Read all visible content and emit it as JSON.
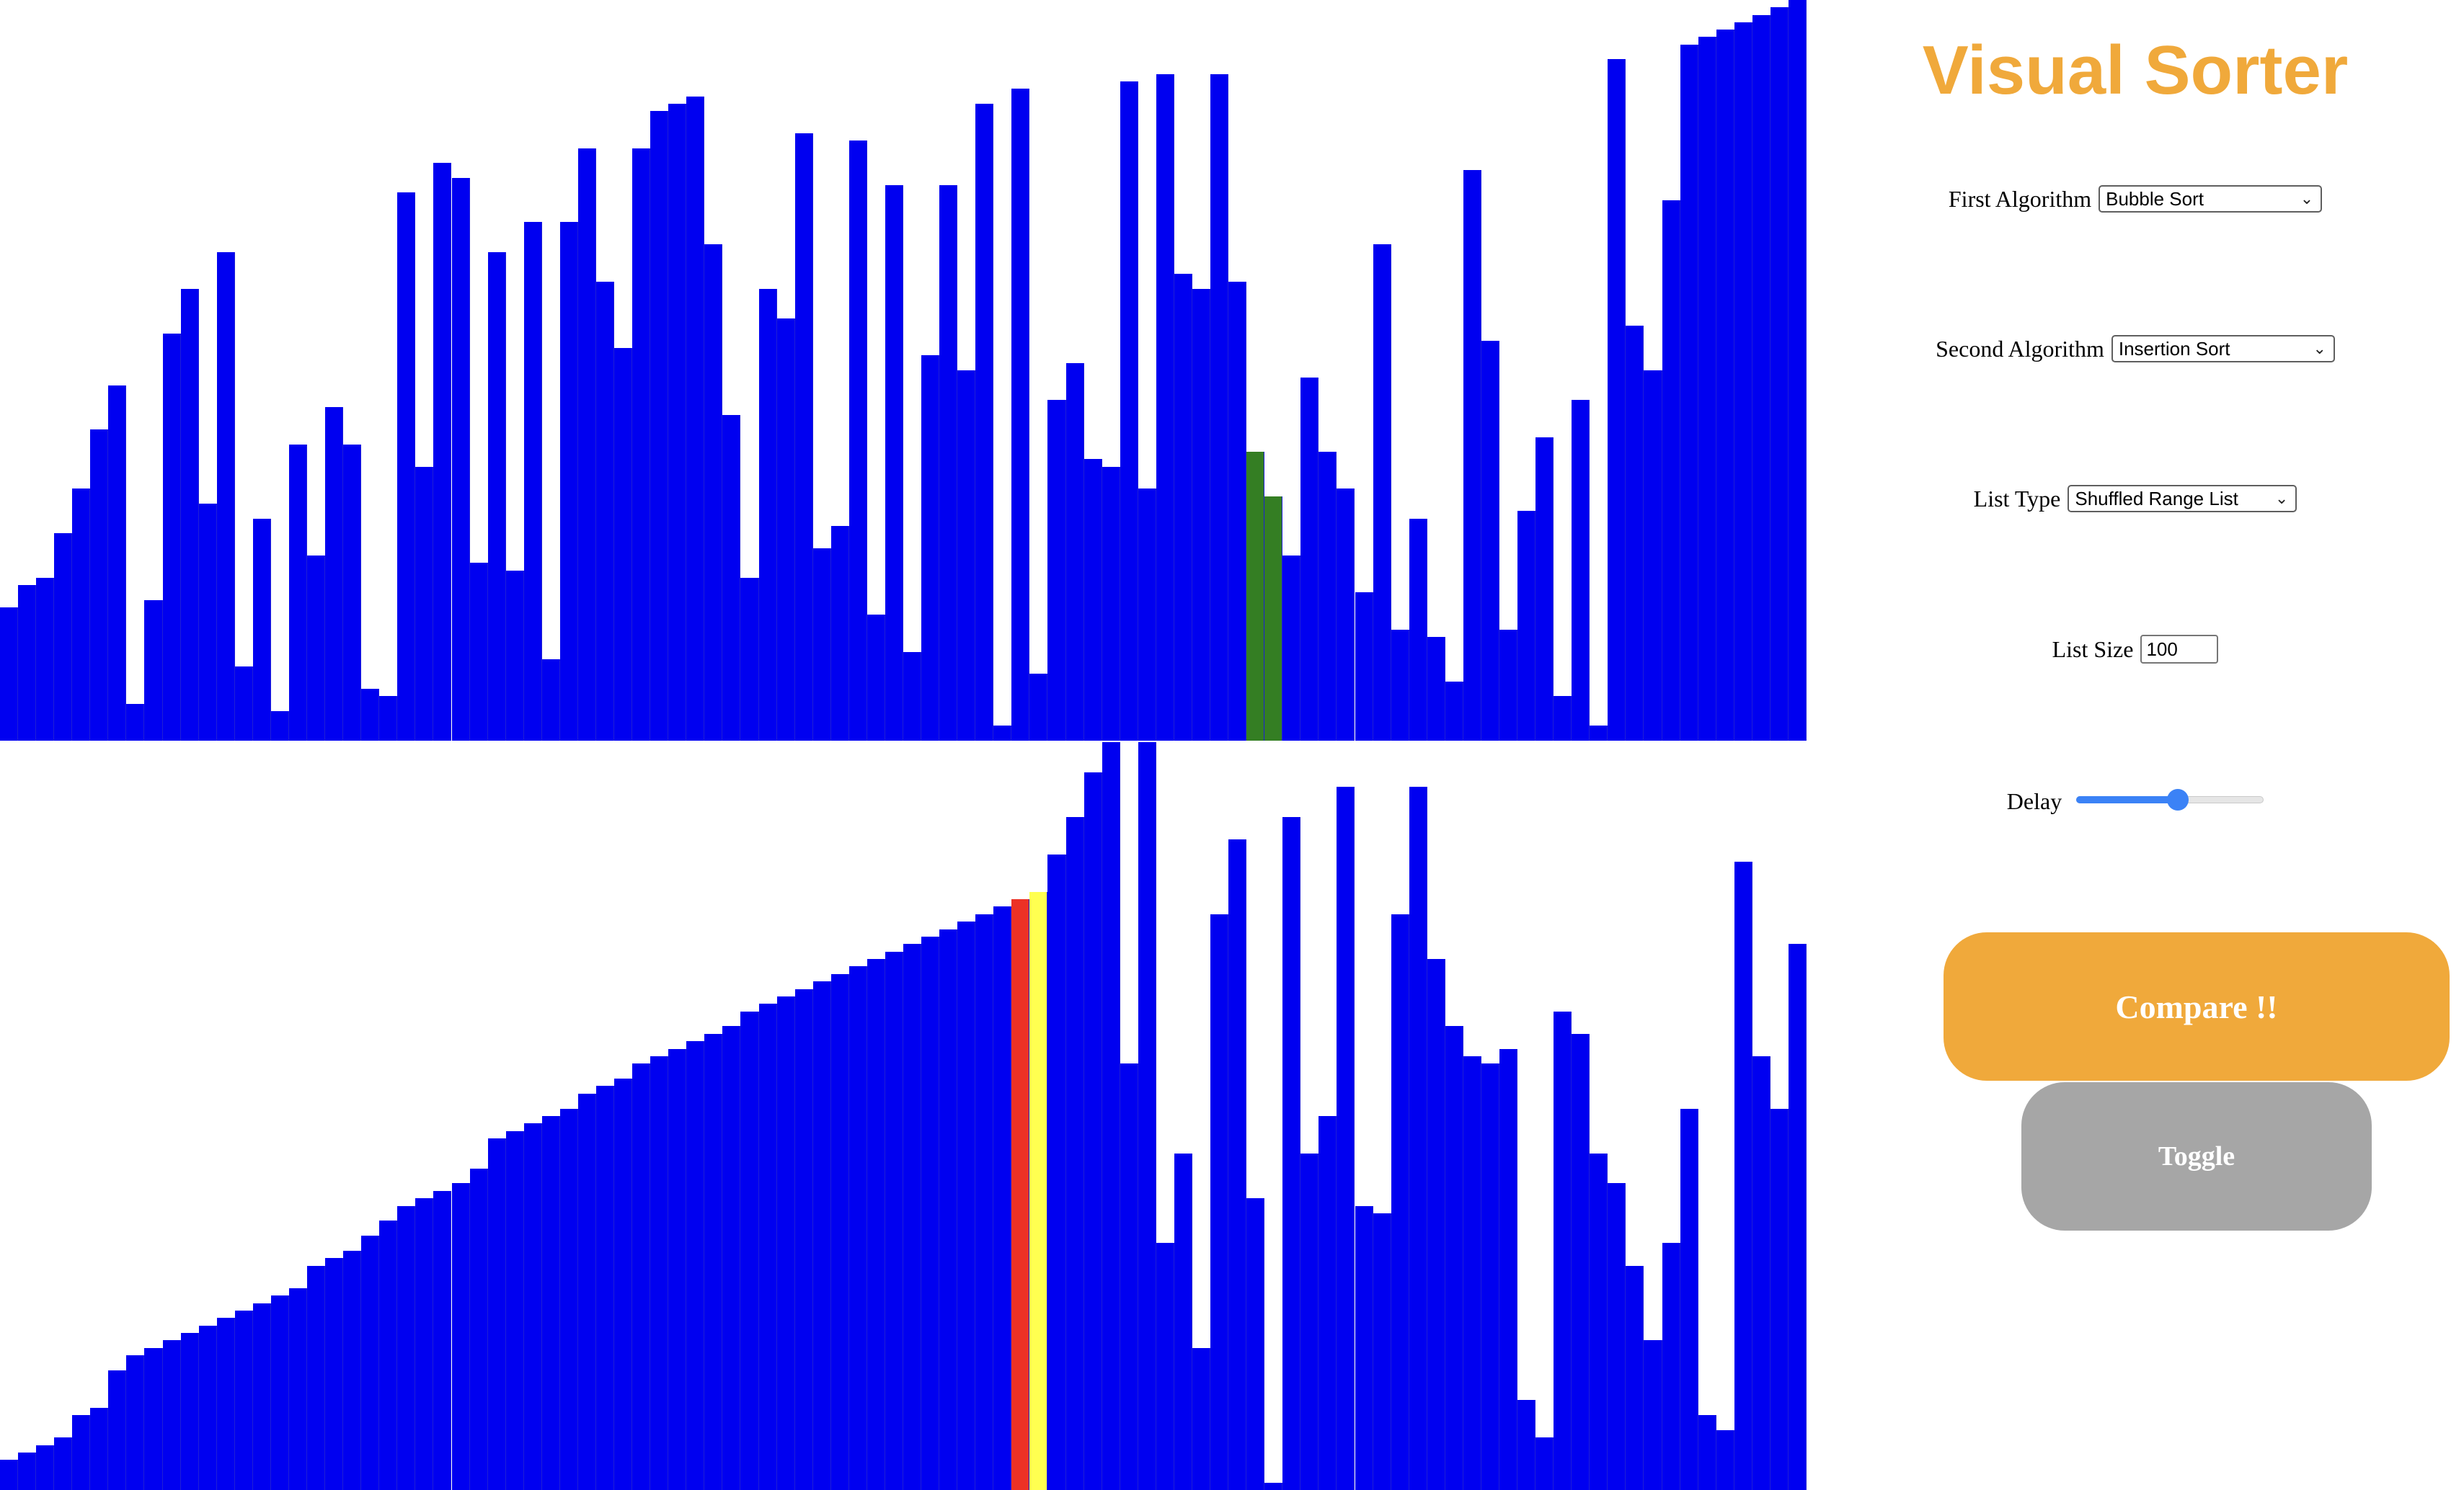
{
  "title": "Visual Sorter",
  "colors": {
    "title": "#f0a93b",
    "bar_default": "#0000f0",
    "bar_compare_primary": "#347e23",
    "bar_swap_primary": "#ec3125",
    "bar_swap_secondary": "#ffff50",
    "compare_button": "#f0a93b",
    "toggle_button": "#a6a6a6",
    "slider_accent": "#3b82f6"
  },
  "controls": {
    "first_algorithm": {
      "label": "First Algorithm",
      "value": "Bubble Sort"
    },
    "second_algorithm": {
      "label": "Second Algorithm",
      "value": "Insertion Sort"
    },
    "list_type": {
      "label": "List Type",
      "value": "Shuffled Range List"
    },
    "list_size": {
      "label": "List Size",
      "value": "100"
    },
    "delay": {
      "label": "Delay",
      "value_fraction": 0.54
    },
    "compare_label": "Compare !!",
    "toggle_label": "Toggle"
  },
  "chart_data": [
    {
      "type": "bar",
      "name": "first-algorithm-visualization",
      "ylim": [
        0,
        100
      ],
      "values": [
        18,
        21,
        22,
        28,
        34,
        42,
        48,
        5,
        19,
        55,
        61,
        32,
        66,
        10,
        30,
        4,
        40,
        25,
        45,
        40,
        7,
        6,
        74,
        37,
        78,
        76,
        24,
        66,
        23,
        70,
        11,
        70,
        80,
        62,
        53,
        80,
        85,
        86,
        87,
        67,
        44,
        22,
        61,
        57,
        82,
        26,
        29,
        81,
        17,
        75,
        12,
        52,
        75,
        50,
        86,
        2,
        88,
        9,
        46,
        51,
        38,
        37,
        89,
        34,
        90,
        63,
        61,
        90,
        62,
        39,
        33,
        25,
        49,
        39,
        34,
        20,
        67,
        15,
        30,
        14,
        8,
        77,
        54,
        15,
        31,
        41,
        6,
        46,
        2,
        92,
        56,
        50,
        73,
        94,
        95,
        96,
        97,
        98,
        99,
        100
      ],
      "highlights": [
        {
          "index": 69,
          "color": "bar_compare_primary"
        },
        {
          "index": 70,
          "color": "bar_compare_primary"
        }
      ]
    },
    {
      "type": "bar",
      "name": "second-algorithm-visualization",
      "ylim": [
        0,
        100
      ],
      "values": [
        4,
        5,
        6,
        7,
        10,
        11,
        16,
        18,
        19,
        20,
        21,
        22,
        23,
        24,
        25,
        26,
        27,
        30,
        31,
        32,
        34,
        36,
        38,
        39,
        40,
        41,
        43,
        47,
        48,
        49,
        50,
        51,
        53,
        54,
        55,
        57,
        58,
        59,
        60,
        61,
        62,
        64,
        65,
        66,
        67,
        68,
        69,
        70,
        71,
        72,
        73,
        74,
        75,
        76,
        77,
        78,
        79,
        80,
        85,
        90,
        96,
        100,
        57,
        100,
        33,
        45,
        19,
        77,
        87,
        39,
        1,
        90,
        45,
        50,
        94,
        38,
        37,
        77,
        94,
        71,
        62,
        58,
        57,
        59,
        12,
        7,
        64,
        61,
        45,
        41,
        30,
        20,
        33,
        51,
        10,
        8,
        84,
        58,
        51,
        73
      ],
      "highlights": [
        {
          "index": 56,
          "color": "bar_swap_primary"
        },
        {
          "index": 57,
          "color": "bar_swap_secondary"
        }
      ]
    }
  ]
}
